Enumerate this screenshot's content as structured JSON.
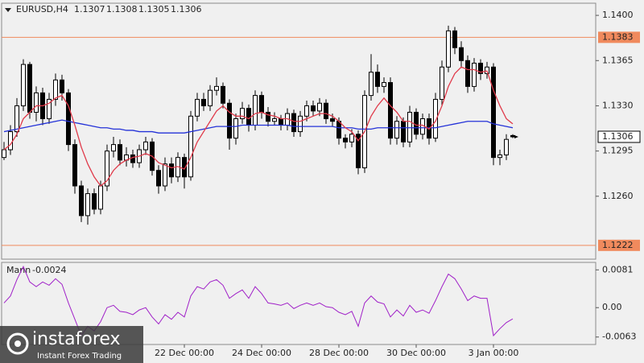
{
  "chart_data": {
    "type": "candlestick",
    "symbol": "EURUSD,H4",
    "categories": [
      null,
      null,
      null,
      null,
      null,
      null,
      null,
      null,
      null,
      null,
      null,
      null,
      null,
      null,
      null,
      null,
      null,
      null,
      null,
      null,
      null,
      null,
      null,
      null,
      null,
      null,
      null,
      null,
      "22 Dec 00:00",
      null,
      null,
      null,
      null,
      null,
      null,
      null,
      null,
      null,
      null,
      null,
      "24 Dec 00:00",
      null,
      null,
      null,
      null,
      null,
      null,
      null,
      null,
      null,
      null,
      null,
      "28 Dec 00:00",
      null,
      null,
      null,
      null,
      null,
      null,
      null,
      null,
      null,
      null,
      null,
      "30 Dec 00:00",
      null,
      null,
      null,
      null,
      null,
      null,
      null,
      null,
      null,
      null,
      null,
      "3 Jan 00:00",
      null,
      null,
      null
    ],
    "open": [
      1.129,
      1.1296,
      1.131,
      1.133,
      1.1362,
      1.1325,
      1.134,
      1.132,
      1.1335,
      1.135,
      1.134,
      1.13,
      1.1268,
      1.1245,
      1.1262,
      1.125,
      1.1268,
      1.1295,
      1.13,
      1.1288,
      1.1292,
      1.1286,
      1.1296,
      1.1302,
      1.128,
      1.1268,
      1.1285,
      1.1275,
      1.129,
      1.1275,
      1.1322,
      1.1335,
      1.133,
      1.1342,
      1.1345,
      1.1332,
      1.1305,
      1.132,
      1.1328,
      1.1315,
      1.1338,
      1.1325,
      1.1318,
      1.132,
      1.1315,
      1.1324,
      1.131,
      1.1322,
      1.133,
      1.1326,
      1.1332,
      1.132,
      1.1318,
      1.1305,
      1.1302,
      1.1308,
      1.1282,
      1.1338,
      1.1356,
      1.1345,
      1.1348,
      1.1305,
      1.1318,
      1.1302,
      1.1325,
      1.1308,
      1.132,
      1.1305,
      1.1335,
      1.136,
      1.1388,
      1.1375,
      1.1365,
      1.1345,
      1.1363,
      1.1355,
      1.136,
      1.129,
      1.1292,
      1.1307
    ],
    "high": [
      1.1302,
      1.1315,
      1.1336,
      1.1366,
      1.1364,
      1.1345,
      1.1344,
      1.134,
      1.1355,
      1.1354,
      1.1343,
      1.1304,
      1.1272,
      1.1266,
      1.1266,
      1.1272,
      1.13,
      1.1306,
      1.1304,
      1.1298,
      1.1296,
      1.13,
      1.1306,
      1.1305,
      1.1284,
      1.129,
      1.129,
      1.1294,
      1.1293,
      1.1326,
      1.134,
      1.134,
      1.1346,
      1.1352,
      1.1348,
      1.1335,
      1.1324,
      1.1333,
      1.1331,
      1.1342,
      1.1341,
      1.1329,
      1.1325,
      1.1323,
      1.1328,
      1.1327,
      1.1326,
      1.1334,
      1.1334,
      1.1336,
      1.1335,
      1.1324,
      1.1321,
      1.1308,
      1.1312,
      1.1311,
      1.1342,
      1.137,
      1.1362,
      1.1352,
      1.1352,
      1.1322,
      1.1321,
      1.133,
      1.1328,
      1.1324,
      1.1324,
      1.134,
      1.1365,
      1.1392,
      1.1391,
      1.138,
      1.1369,
      1.1367,
      1.1366,
      1.1364,
      1.1363,
      1.1296,
      1.1308,
      1.1308
    ],
    "low": [
      1.1288,
      1.1292,
      1.1306,
      1.1326,
      1.132,
      1.1318,
      1.1315,
      1.1316,
      1.133,
      1.1334,
      1.1295,
      1.1262,
      1.124,
      1.1238,
      1.1246,
      1.1246,
      1.1264,
      1.129,
      1.1284,
      1.1283,
      1.1282,
      1.1282,
      1.1292,
      1.1276,
      1.1262,
      1.1264,
      1.127,
      1.1271,
      1.1266,
      1.1272,
      1.1318,
      1.1326,
      1.1326,
      1.1338,
      1.1328,
      1.1296,
      1.13,
      1.1316,
      1.131,
      1.1311,
      1.132,
      1.1314,
      1.1315,
      1.1311,
      1.1311,
      1.1306,
      1.1306,
      1.1318,
      1.1322,
      1.1322,
      1.1316,
      1.1314,
      1.13,
      1.1297,
      1.1298,
      1.1277,
      1.1278,
      1.1334,
      1.134,
      1.134,
      1.13,
      1.13,
      1.1298,
      1.1298,
      1.1304,
      1.1304,
      1.13,
      1.1302,
      1.133,
      1.1356,
      1.137,
      1.136,
      1.134,
      1.1341,
      1.135,
      1.1351,
      1.1284,
      1.1284,
      1.1288,
      1.1305
    ],
    "close": [
      1.1296,
      1.131,
      1.133,
      1.1362,
      1.1325,
      1.134,
      1.132,
      1.1335,
      1.135,
      1.134,
      1.13,
      1.1268,
      1.1245,
      1.1262,
      1.125,
      1.1268,
      1.1295,
      1.13,
      1.1288,
      1.1292,
      1.1286,
      1.1296,
      1.1302,
      1.128,
      1.1268,
      1.1285,
      1.1275,
      1.129,
      1.1275,
      1.1322,
      1.1335,
      1.133,
      1.1342,
      1.1345,
      1.1332,
      1.1305,
      1.132,
      1.1328,
      1.1315,
      1.1338,
      1.1325,
      1.1318,
      1.132,
      1.1315,
      1.1324,
      1.131,
      1.1322,
      1.133,
      1.1326,
      1.1332,
      1.132,
      1.1318,
      1.1305,
      1.1302,
      1.1308,
      1.1282,
      1.1338,
      1.1356,
      1.1345,
      1.1348,
      1.1305,
      1.1318,
      1.1302,
      1.1325,
      1.1308,
      1.132,
      1.1305,
      1.1335,
      1.136,
      1.1388,
      1.1375,
      1.1365,
      1.1345,
      1.1363,
      1.1355,
      1.136,
      1.129,
      1.1292,
      1.1304,
      1.1306
    ],
    "ylim": [
      1.12113,
      1.14094
    ],
    "yticks": [
      {
        "value": 1.14,
        "label": "1.1400"
      },
      1.1365,
      {
        "value": 1.133,
        "label": "1.1330"
      },
      1.1295,
      {
        "value": 1.126,
        "label": "1.1260"
      }
    ],
    "levels": [
      1.1383,
      1.1222
    ],
    "level_color": "#f08a5d",
    "moving_averages": [
      {
        "color": "#2432d8",
        "values": [
          1.131,
          1.1311,
          1.1312,
          1.1313,
          1.1314,
          1.1315,
          1.1316,
          1.1317,
          1.1318,
          1.1319,
          1.1318,
          1.1317,
          1.1316,
          1.1315,
          1.1314,
          1.1313,
          1.1313,
          1.1312,
          1.1312,
          1.1311,
          1.1311,
          1.131,
          1.131,
          1.131,
          1.1309,
          1.1309,
          1.1309,
          1.1309,
          1.1309,
          1.131,
          1.1311,
          1.1312,
          1.1313,
          1.1314,
          1.1314,
          1.1314,
          1.1314,
          1.1315,
          1.1315,
          1.1315,
          1.1315,
          1.1315,
          1.1315,
          1.1315,
          1.1315,
          1.1314,
          1.1314,
          1.1314,
          1.1314,
          1.1314,
          1.1314,
          1.1314,
          1.1313,
          1.1313,
          1.1313,
          1.1312,
          1.1312,
          1.1312,
          1.1313,
          1.1313,
          1.1313,
          1.1313,
          1.1313,
          1.1313,
          1.1313,
          1.1313,
          1.1313,
          1.1313,
          1.1314,
          1.1315,
          1.1316,
          1.1317,
          1.1318,
          1.1318,
          1.1318,
          1.1318,
          1.1316,
          1.1315,
          1.1314,
          1.1313
        ]
      },
      {
        "color": "#e03a4a",
        "values": [
          1.1296,
          1.13,
          1.1308,
          1.132,
          1.1325,
          1.133,
          1.133,
          1.1332,
          1.1336,
          1.1338,
          1.133,
          1.1315,
          1.1298,
          1.1285,
          1.1275,
          1.1268,
          1.1272,
          1.128,
          1.1285,
          1.1288,
          1.129,
          1.1291,
          1.1293,
          1.1291,
          1.1286,
          1.1284,
          1.1282,
          1.1283,
          1.1281,
          1.129,
          1.1302,
          1.131,
          1.1318,
          1.1326,
          1.133,
          1.1325,
          1.1322,
          1.1322,
          1.132,
          1.1324,
          1.1325,
          1.1323,
          1.1322,
          1.132,
          1.132,
          1.1318,
          1.1318,
          1.132,
          1.1322,
          1.1324,
          1.1324,
          1.1322,
          1.1318,
          1.1313,
          1.131,
          1.1303,
          1.131,
          1.1322,
          1.133,
          1.1336,
          1.133,
          1.1325,
          1.1318,
          1.1318,
          1.1315,
          1.1315,
          1.1312,
          1.1318,
          1.133,
          1.1345,
          1.1355,
          1.136,
          1.1358,
          1.1358,
          1.1356,
          1.1357,
          1.1342,
          1.133,
          1.132,
          1.1316
        ]
      }
    ],
    "indicator": {
      "name": "Mann",
      "color": "#a020c8",
      "values": [
        0.001,
        0.0025,
        0.006,
        0.0088,
        0.0055,
        0.0045,
        0.0055,
        0.0048,
        0.0062,
        0.005,
        0.001,
        -0.0025,
        -0.006,
        -0.004,
        -0.005,
        -0.003,
        0.0,
        0.0005,
        -0.0008,
        -0.001,
        -0.0015,
        -0.0005,
        0.0,
        -0.002,
        -0.0035,
        -0.0015,
        -0.0025,
        -0.001,
        -0.002,
        0.0025,
        0.0045,
        0.004,
        0.0055,
        0.006,
        0.0048,
        0.002,
        0.003,
        0.0038,
        0.002,
        0.0045,
        0.003,
        0.001,
        0.0008,
        0.0005,
        0.001,
        -0.0002,
        0.0005,
        0.001,
        0.0005,
        0.001,
        0.0002,
        0.0,
        -0.001,
        -0.0015,
        -0.0008,
        -0.004,
        0.001,
        0.0025,
        0.0012,
        0.0008,
        -0.002,
        -0.0005,
        -0.0018,
        0.0005,
        -0.001,
        -0.0005,
        -0.0012,
        0.0015,
        0.0045,
        0.0072,
        0.0062,
        0.004,
        0.0015,
        0.0025,
        0.002,
        0.002,
        -0.006,
        -0.0045,
        -0.0032,
        -0.0024
      ],
      "ylim": [
        -0.0079,
        0.0097
      ],
      "yticks": [
        0.0081,
        {
          "value": 0,
          "label": "0.00"
        },
        -0.0063
      ]
    },
    "watermark": {
      "brand": "instaforex",
      "tagline": "Instant Forex Trading"
    }
  }
}
